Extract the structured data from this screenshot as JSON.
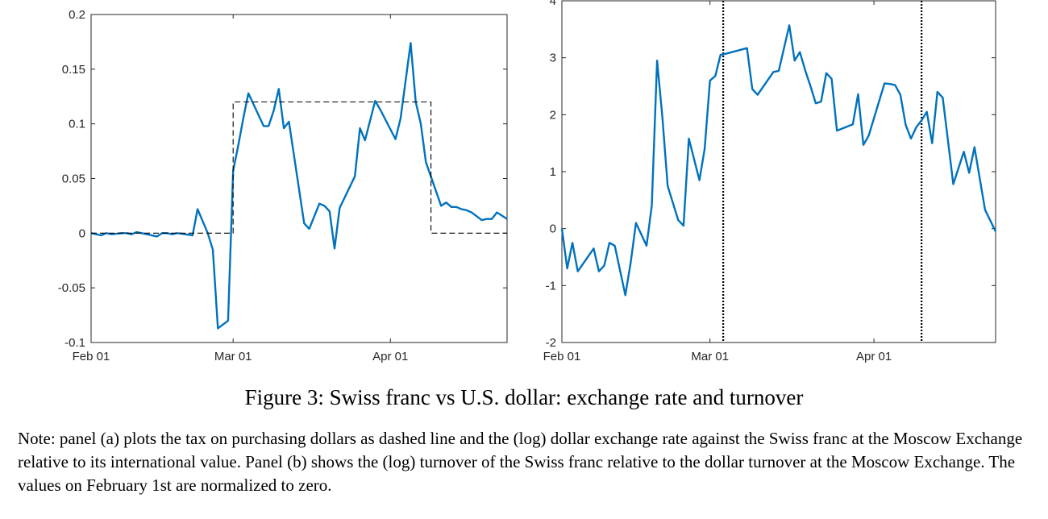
{
  "caption": "Figure 3: Swiss franc vs U.S. dollar: exchange rate and turnover",
  "note": "Note: panel (a) plots the tax on purchasing dollars as dashed line and the (log) dollar exchange rate against the Swiss franc at the Moscow Exchange relative to its international value. Panel (b) shows the (log) turnover of the Swiss franc relative to the dollar turnover at the Moscow Exchange. The values on February 1st are normalized to zero.",
  "colors": {
    "series": "#0072BD",
    "axis": "#262626",
    "reference": "#000000"
  },
  "chart_data": [
    {
      "type": "line",
      "xlabel": "",
      "ylabel": "",
      "xticks": [
        {
          "day": 1,
          "label": "Feb 01"
        },
        {
          "day": 29,
          "label": "Mar 01"
        },
        {
          "day": 60,
          "label": "Apr 01"
        }
      ],
      "xlim": [
        1,
        83
      ],
      "ylim": [
        -0.1,
        0.2
      ],
      "yticks": [
        {
          "value": 0.2,
          "label": "0.2"
        },
        {
          "value": 0.15,
          "label": "0.15"
        },
        {
          "value": 0.1,
          "label": "0.1"
        },
        {
          "value": 0.05,
          "label": "0.05"
        },
        {
          "value": 0,
          "label": "0"
        },
        {
          "value": -0.05,
          "label": "-0.05"
        },
        {
          "value": -0.1,
          "label": "-0.1"
        }
      ],
      "grid": false,
      "series": [
        {
          "style": "solid",
          "x": [
            1,
            2,
            3,
            4,
            5,
            7,
            8,
            9,
            10,
            11,
            14,
            15,
            16,
            17,
            18,
            21,
            22,
            24,
            25,
            26,
            28,
            29,
            30,
            31,
            32,
            35,
            36,
            37,
            38,
            39,
            40,
            43,
            44,
            46,
            47,
            48,
            49,
            50,
            53,
            54,
            55,
            57,
            58,
            61,
            62,
            64,
            65,
            66,
            67,
            70,
            71,
            72,
            73,
            74,
            75,
            76,
            78,
            79,
            80,
            81,
            82,
            83
          ],
          "y": [
            0,
            -0.001,
            -0.002,
            0,
            -0.001,
            0,
            0,
            -0.001,
            0.001,
            0,
            -0.003,
            0,
            0,
            -0.001,
            0,
            -0.002,
            0.022,
            0,
            -0.015,
            -0.087,
            -0.08,
            0.057,
            0.08,
            0.105,
            0.128,
            0.098,
            0.098,
            0.112,
            0.132,
            0.096,
            0.102,
            0.009,
            0.004,
            0.027,
            0.025,
            0.02,
            -0.014,
            0.023,
            0.052,
            0.096,
            0.085,
            0.121,
            0.113,
            0.086,
            0.105,
            0.174,
            0.12,
            0.1,
            0.065,
            0.025,
            0.028,
            0.024,
            0.024,
            0.022,
            0.021,
            0.019,
            0.012,
            0.013,
            0.013,
            0.019,
            0.016,
            0.013
          ]
        },
        {
          "style": "dashed",
          "x": [
            1,
            29,
            29,
            68,
            68,
            83
          ],
          "y": [
            0,
            0,
            0.12,
            0.12,
            0,
            0
          ]
        }
      ]
    },
    {
      "type": "line",
      "xlabel": "",
      "ylabel": "",
      "xticks": [
        {
          "day": 1,
          "label": "Feb 01"
        },
        {
          "day": 29,
          "label": "Mar 01"
        },
        {
          "day": 60,
          "label": "Apr 01"
        }
      ],
      "xlim": [
        1,
        83
      ],
      "ylim": [
        -2,
        4
      ],
      "yticks": [
        {
          "value": 4,
          "label": "4"
        },
        {
          "value": 3,
          "label": "3"
        },
        {
          "value": 2,
          "label": "2"
        },
        {
          "value": 1,
          "label": "1"
        },
        {
          "value": 0,
          "label": "0"
        },
        {
          "value": -1,
          "label": "-1"
        },
        {
          "value": -2,
          "label": "-2"
        }
      ],
      "vlines": [
        31.5,
        69
      ],
      "grid": false,
      "series": [
        {
          "style": "solid",
          "x": [
            1,
            2,
            3,
            4,
            7,
            8,
            9,
            10,
            11,
            13,
            14,
            15,
            17,
            18,
            19,
            20,
            21,
            23,
            24,
            25,
            27,
            28,
            29,
            30,
            31,
            32,
            36,
            37,
            38,
            41,
            42,
            44,
            45,
            46,
            47,
            48,
            49,
            50,
            51,
            52,
            53,
            56,
            57,
            58,
            59,
            62,
            63,
            64,
            65,
            66,
            67,
            68,
            69,
            70,
            71,
            72,
            73,
            75,
            77,
            78,
            79,
            81,
            83
          ],
          "y": [
            0,
            -0.7,
            -0.25,
            -0.75,
            -0.35,
            -0.75,
            -0.65,
            -0.25,
            -0.3,
            -1.17,
            -0.6,
            0.1,
            -0.3,
            0.4,
            2.95,
            1.95,
            0.75,
            0.15,
            0.05,
            1.58,
            0.85,
            1.4,
            2.6,
            2.68,
            3.05,
            3.07,
            3.17,
            2.45,
            2.35,
            2.75,
            2.77,
            3.57,
            2.95,
            3.1,
            2.78,
            2.5,
            2.2,
            2.23,
            2.73,
            2.63,
            1.72,
            1.83,
            2.36,
            1.47,
            1.63,
            2.55,
            2.54,
            2.52,
            2.35,
            1.82,
            1.58,
            1.78,
            1.9,
            2.05,
            1.5,
            2.4,
            2.3,
            0.78,
            1.35,
            0.98,
            1.43,
            0.33,
            -0.05
          ]
        }
      ]
    }
  ]
}
